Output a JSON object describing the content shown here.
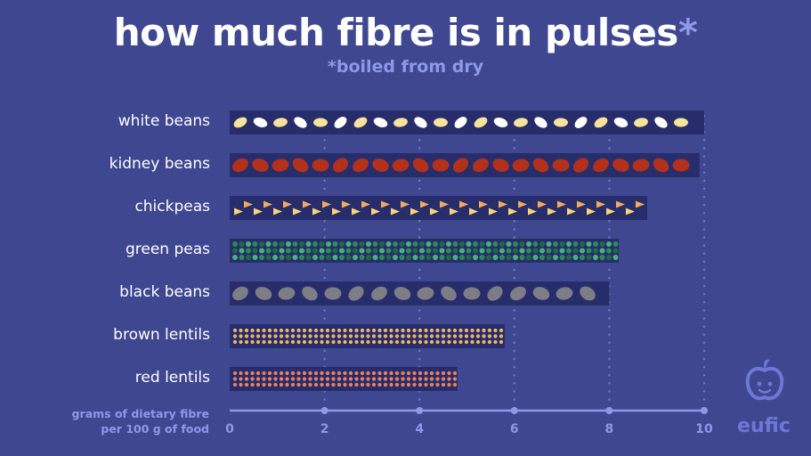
{
  "title_text": "how much fibre is in pulses",
  "title_star": "*",
  "subtitle": "*boiled from dry",
  "axis_title_line1": "grams of dietary fibre",
  "axis_title_line2": "per 100 g of food",
  "brand": "eufic",
  "brand_logo_icon": "apple-face-icon",
  "chart_data": {
    "type": "bar",
    "orientation": "horizontal",
    "title": "how much fibre is in pulses*",
    "subtitle": "*boiled from dry",
    "xlabel": "grams of dietary fibre per 100 g of food",
    "xlim": [
      0,
      10
    ],
    "xticks": [
      "0",
      "2",
      "4",
      "6",
      "8",
      "10"
    ],
    "grid": "vertical dotted",
    "categories": [
      "white beans",
      "kidney beans",
      "chickpeas",
      "green peas",
      "black beans",
      "brown lentils",
      "red lentils"
    ],
    "values": [
      10.0,
      9.9,
      8.8,
      8.2,
      8.0,
      5.8,
      4.8
    ],
    "colors": {
      "white beans": [
        "#f7e39a",
        "#ffffff"
      ],
      "kidney beans": [
        "#b3301b"
      ],
      "chickpeas": [
        "#f9d27a",
        "#f6a85e"
      ],
      "green peas": [
        "#2f8a55",
        "#1f6a45",
        "#45b37e"
      ],
      "black beans": [
        "#7d7d86"
      ],
      "brown lentils": [
        "#f0b466"
      ],
      "red lentils": [
        "#f0805a"
      ]
    }
  }
}
